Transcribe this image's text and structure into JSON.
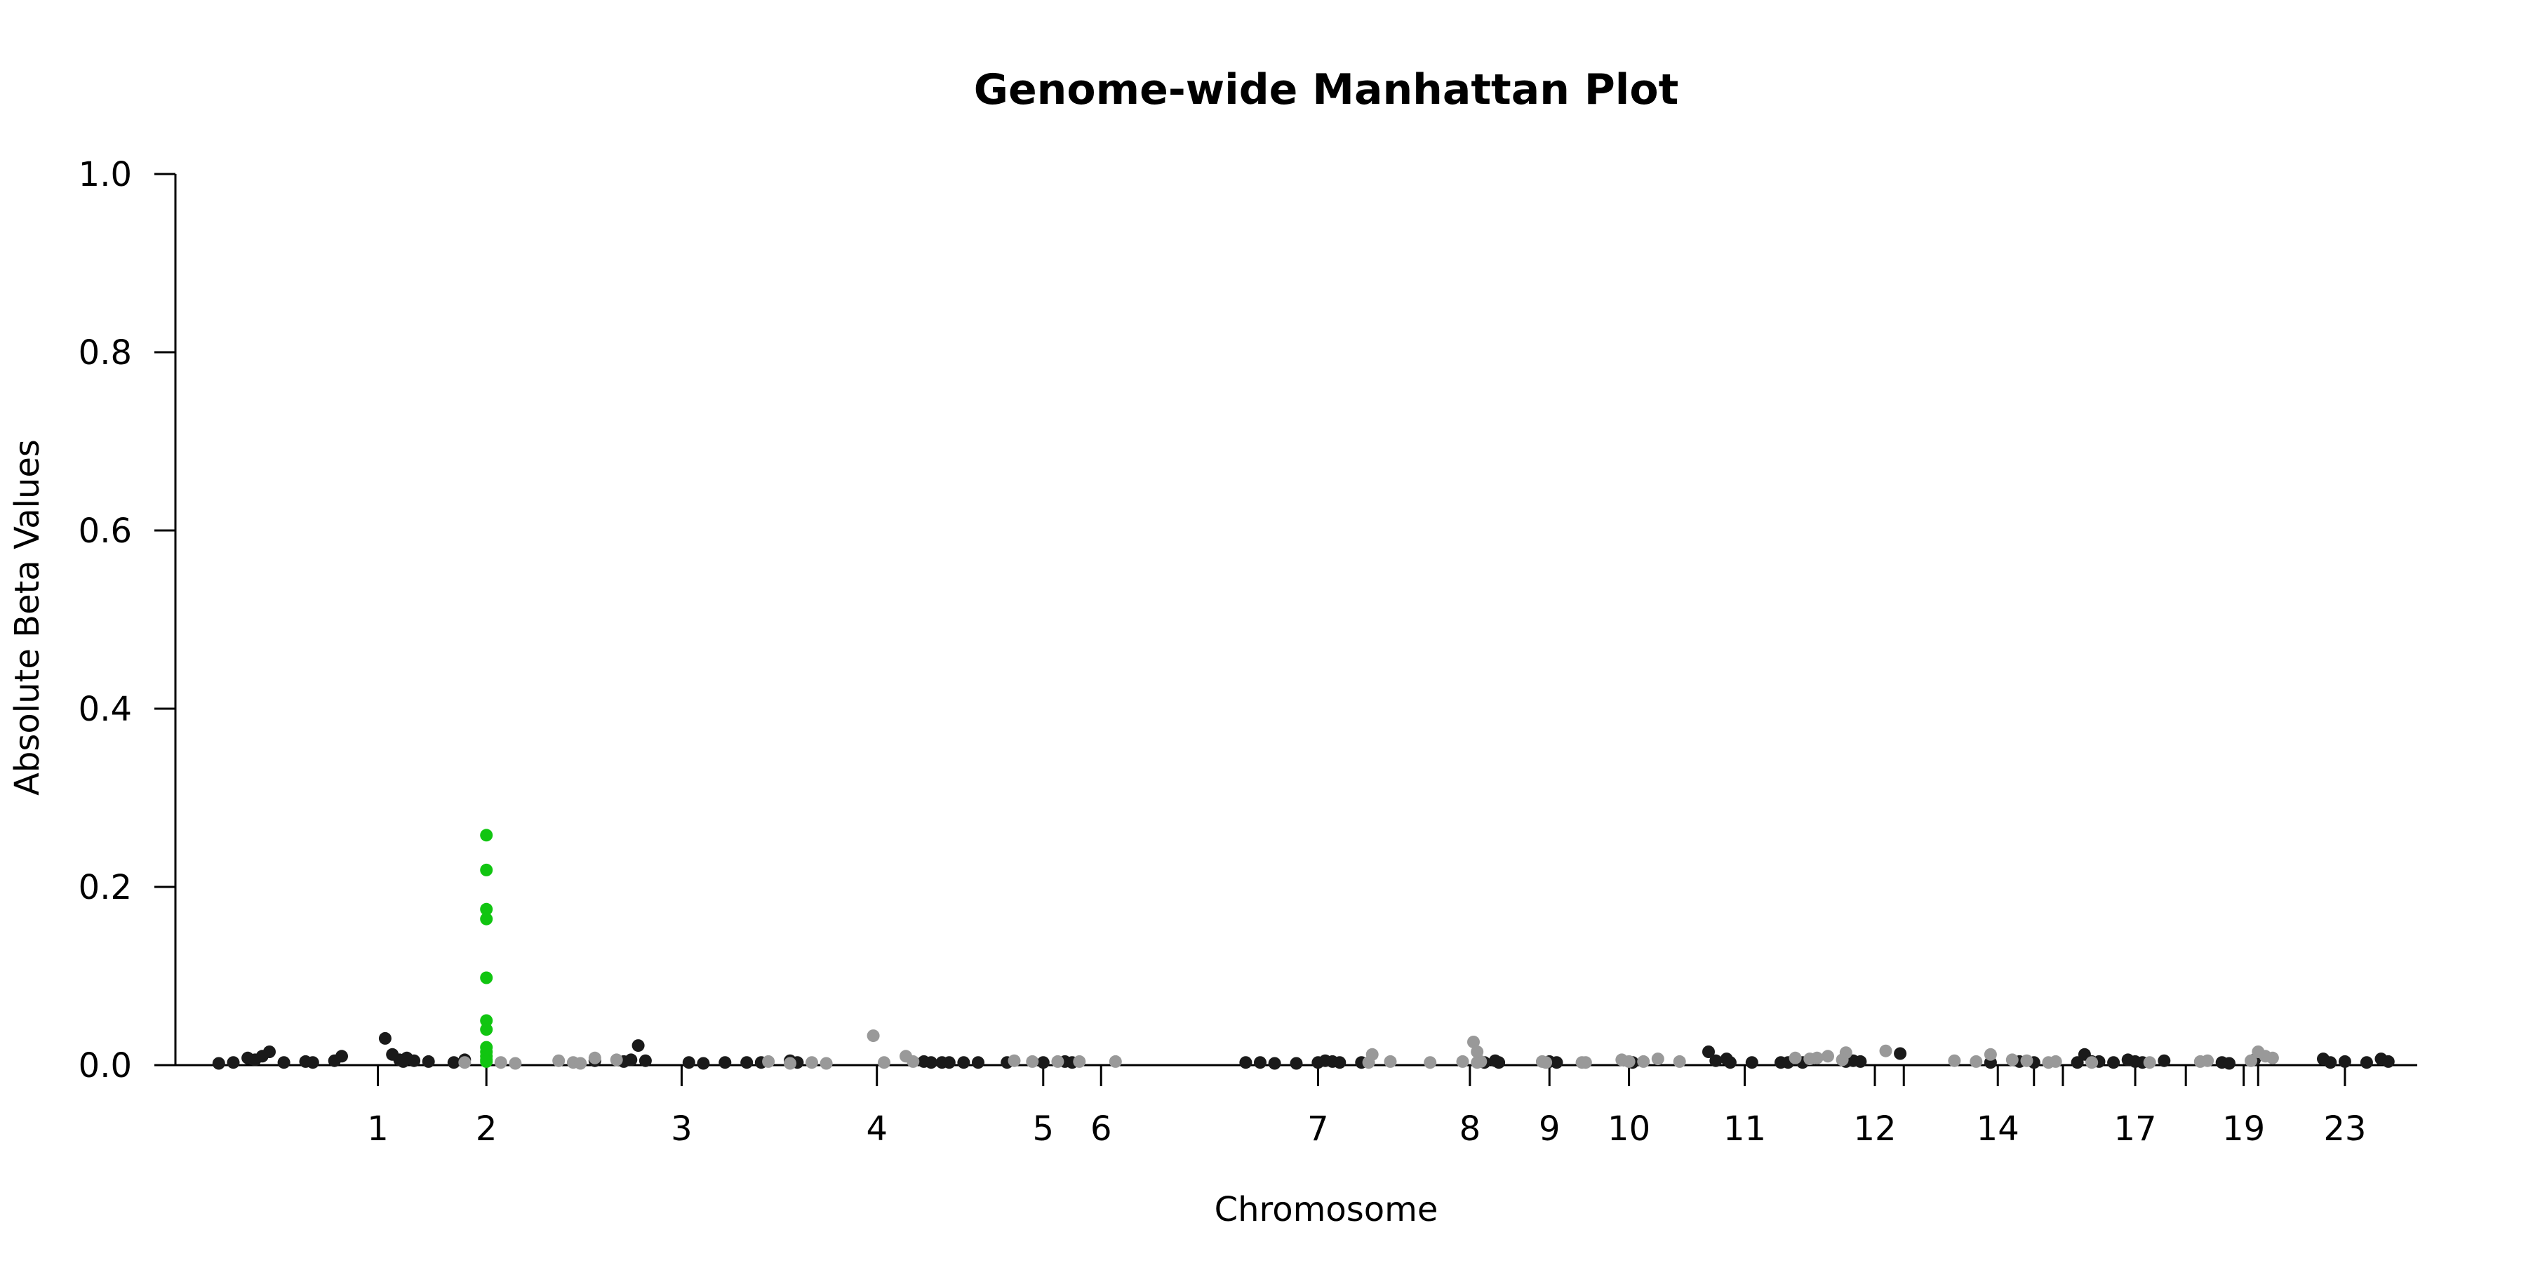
{
  "chart_data": {
    "type": "scatter",
    "title": "Genome-wide Manhattan Plot",
    "xlabel": "Chromosome",
    "ylabel": "Absolute Beta Values",
    "ylim": [
      0,
      1.0
    ],
    "xlim": [
      -0.5,
      30.5
    ],
    "y_ticks": [
      "0.0",
      "0.2",
      "0.4",
      "0.6",
      "0.8",
      "1.0"
    ],
    "x_ticks": [
      {
        "label": "1",
        "x": 2.3
      },
      {
        "label": "2",
        "x": 3.8
      },
      {
        "label": "3",
        "x": 6.5
      },
      {
        "label": "4",
        "x": 9.2
      },
      {
        "label": "5",
        "x": 11.5
      },
      {
        "label": "6",
        "x": 12.3
      },
      {
        "label": "7",
        "x": 15.3
      },
      {
        "label": "8",
        "x": 17.4
      },
      {
        "label": "9",
        "x": 18.5
      },
      {
        "label": "10",
        "x": 19.6
      },
      {
        "label": "11",
        "x": 21.2
      },
      {
        "label": "12",
        "x": 23.0
      },
      {
        "label": "14",
        "x": 24.7
      },
      {
        "label": "17",
        "x": 26.6
      },
      {
        "label": "19",
        "x": 28.1
      },
      {
        "label": "23",
        "x": 29.5
      }
    ],
    "x_minor_ticks": [
      23.4,
      25.2,
      25.6,
      27.3,
      28.3
    ],
    "colors": {
      "dark": "#1a1a1a",
      "light": "#999999",
      "highlight": "#11c511"
    },
    "series": [
      {
        "color_key": "dark",
        "x": [
          0.1,
          0.3,
          0.5,
          0.6,
          0.7,
          0.8,
          1.0,
          1.3,
          1.4,
          1.7,
          1.8,
          2.4,
          2.5,
          2.6,
          2.65,
          2.7,
          2.8,
          3.0,
          3.35,
          3.5,
          5.3,
          5.7,
          5.8,
          5.9,
          6.0,
          6.6,
          6.8,
          7.1,
          7.4,
          7.6,
          8.0,
          8.1,
          9.85,
          9.95,
          10.1,
          10.2,
          10.4,
          10.6,
          11.0,
          11.5,
          11.8,
          11.9,
          14.3,
          14.5,
          14.7,
          15.0,
          15.3,
          15.4,
          15.5,
          15.6,
          15.9,
          17.6,
          17.75,
          17.8,
          18.5,
          18.6,
          19.65,
          20.7,
          20.8,
          20.95,
          21.0,
          21.3,
          21.7,
          21.8,
          22.0,
          22.6,
          22.7,
          22.8,
          23.35,
          24.6,
          25.0,
          25.2,
          25.8,
          25.9,
          26.0,
          26.1,
          26.3,
          26.5,
          26.6,
          26.7,
          27.0,
          27.8,
          27.9,
          28.25,
          29.2,
          29.3,
          29.5,
          29.8,
          30.0,
          30.1
        ],
        "y": [
          0.002,
          0.003,
          0.008,
          0.006,
          0.01,
          0.015,
          0.003,
          0.004,
          0.003,
          0.005,
          0.01,
          0.03,
          0.012,
          0.006,
          0.004,
          0.008,
          0.005,
          0.004,
          0.003,
          0.006,
          0.005,
          0.004,
          0.006,
          0.022,
          0.005,
          0.003,
          0.002,
          0.003,
          0.003,
          0.003,
          0.005,
          0.003,
          0.004,
          0.003,
          0.003,
          0.003,
          0.003,
          0.003,
          0.003,
          0.003,
          0.004,
          0.003,
          0.003,
          0.003,
          0.002,
          0.002,
          0.003,
          0.005,
          0.004,
          0.003,
          0.003,
          0.003,
          0.005,
          0.003,
          0.004,
          0.003,
          0.003,
          0.015,
          0.005,
          0.007,
          0.003,
          0.003,
          0.003,
          0.003,
          0.003,
          0.004,
          0.005,
          0.004,
          0.013,
          0.003,
          0.004,
          0.003,
          0.003,
          0.012,
          0.004,
          0.004,
          0.003,
          0.006,
          0.004,
          0.003,
          0.005,
          0.003,
          0.002,
          0.006,
          0.007,
          0.003,
          0.004,
          0.003,
          0.007,
          0.004
        ]
      },
      {
        "color_key": "light",
        "x": [
          3.5,
          4.0,
          4.2,
          4.8,
          5.0,
          5.1,
          5.3,
          5.6,
          7.7,
          8.0,
          8.3,
          8.5,
          9.15,
          9.3,
          9.6,
          9.7,
          11.1,
          11.35,
          11.7,
          12.0,
          12.5,
          16.0,
          16.05,
          16.3,
          16.85,
          17.3,
          17.5,
          17.55,
          18.95,
          19.0,
          19.5,
          19.6,
          19.8,
          20.0,
          20.3,
          21.9,
          22.1,
          22.2,
          22.35,
          22.6,
          23.15,
          24.1,
          24.4,
          24.6,
          24.9,
          25.1,
          25.4,
          25.5,
          26.0,
          26.8,
          27.5,
          27.6,
          28.2,
          28.4,
          28.5
        ],
        "y": [
          0.003,
          0.003,
          0.002,
          0.005,
          0.003,
          0.002,
          0.008,
          0.006,
          0.004,
          0.002,
          0.003,
          0.002,
          0.033,
          0.003,
          0.01,
          0.004,
          0.005,
          0.004,
          0.004,
          0.004,
          0.004,
          0.003,
          0.012,
          0.004,
          0.003,
          0.004,
          0.003,
          0.004,
          0.003,
          0.003,
          0.006,
          0.004,
          0.004,
          0.007,
          0.004,
          0.008,
          0.007,
          0.008,
          0.01,
          0.014,
          0.016,
          0.005,
          0.004,
          0.012,
          0.006,
          0.005,
          0.003,
          0.004,
          0.003,
          0.003,
          0.004,
          0.005,
          0.005,
          0.01,
          0.008
        ]
      },
      {
        "color_key": "light",
        "x": [
          17.45,
          17.5,
          18.4,
          18.45,
          22.55,
          28.3
        ],
        "y": [
          0.026,
          0.015,
          0.004,
          0.003,
          0.006,
          0.015
        ]
      },
      {
        "color_key": "highlight",
        "x": [
          3.8,
          3.8,
          3.8,
          3.8,
          3.8,
          3.8,
          3.8,
          3.8,
          3.8,
          3.8,
          3.8,
          3.8
        ],
        "y": [
          0.258,
          0.219,
          0.175,
          0.164,
          0.098,
          0.05,
          0.04,
          0.02,
          0.015,
          0.01,
          0.006,
          0.004
        ]
      }
    ]
  }
}
